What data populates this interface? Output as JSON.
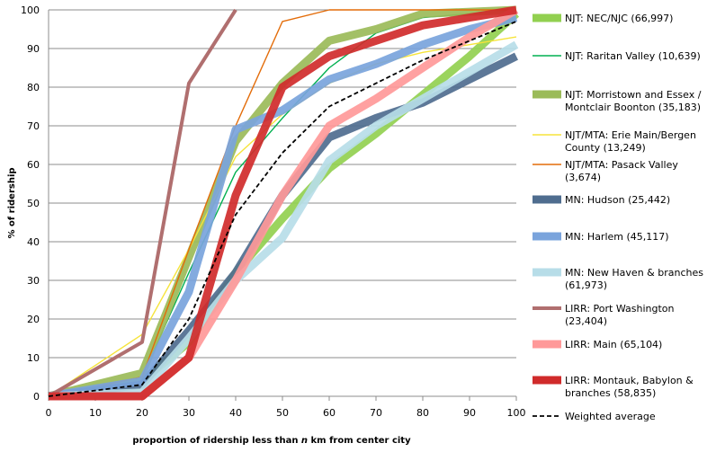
{
  "chart_data": {
    "type": "line",
    "xlabel_parts": [
      "proportion of ridership less than ",
      "n",
      " km from center city"
    ],
    "ylabel": "% of ridership",
    "x": [
      0,
      10,
      20,
      30,
      40,
      50,
      60,
      70,
      80,
      90,
      100
    ],
    "xlim": [
      0,
      100
    ],
    "ylim": [
      0,
      100
    ],
    "x_ticks": [
      "0",
      "10",
      "20",
      "30",
      "40",
      "50",
      "60",
      "70",
      "80",
      "90",
      "100"
    ],
    "y_ticks": [
      "0",
      "10",
      "20",
      "30",
      "40",
      "50",
      "60",
      "70",
      "80",
      "90",
      "100"
    ],
    "grid": "horizontal",
    "legend_position": "right",
    "series": [
      {
        "name": "NJT: NEC/NJC (66,997)",
        "color": "#92d050",
        "weight": "heavy",
        "points": [
          [
            0,
            0
          ],
          [
            20,
            4
          ],
          [
            30,
            14
          ],
          [
            40,
            32
          ],
          [
            50,
            46
          ],
          [
            60,
            59
          ],
          [
            70,
            68
          ],
          [
            80,
            78
          ],
          [
            90,
            88
          ],
          [
            100,
            99
          ]
        ]
      },
      {
        "name": "NJT: Raritan Valley (10,639)",
        "color": "#00b050",
        "weight": "thin",
        "points": [
          [
            0,
            0
          ],
          [
            20,
            5
          ],
          [
            30,
            32
          ],
          [
            40,
            58
          ],
          [
            50,
            72
          ],
          [
            60,
            85
          ],
          [
            70,
            94
          ],
          [
            80,
            98
          ],
          [
            100,
            100
          ]
        ]
      },
      {
        "name": "NJT: Morristown and Essex / Montclair Boonton (35,183)",
        "color": "#9bbb59",
        "weight": "heavy",
        "points": [
          [
            0,
            0
          ],
          [
            20,
            6
          ],
          [
            30,
            36
          ],
          [
            40,
            66
          ],
          [
            50,
            81
          ],
          [
            60,
            92
          ],
          [
            70,
            95
          ],
          [
            80,
            99
          ],
          [
            100,
            100
          ]
        ]
      },
      {
        "name": "NJT/MTA: Erie Main/Bergen County (13,249)",
        "color": "#f6e43a",
        "weight": "thin",
        "points": [
          [
            0,
            0
          ],
          [
            20,
            16
          ],
          [
            30,
            38
          ],
          [
            40,
            62
          ],
          [
            50,
            73
          ],
          [
            60,
            81
          ],
          [
            70,
            86
          ],
          [
            80,
            89
          ],
          [
            90,
            91
          ],
          [
            100,
            93
          ]
        ]
      },
      {
        "name": "NJT/MTA: Pasack Valley (3,674)",
        "color": "#e36c09",
        "weight": "thin",
        "points": [
          [
            0,
            0
          ],
          [
            20,
            5
          ],
          [
            30,
            38
          ],
          [
            40,
            70
          ],
          [
            50,
            97
          ],
          [
            60,
            100
          ],
          [
            100,
            100
          ]
        ]
      },
      {
        "name": "MN: Hudson (25,442)",
        "color": "#4f6d8f",
        "weight": "heavy",
        "points": [
          [
            0,
            0
          ],
          [
            20,
            3
          ],
          [
            30,
            17
          ],
          [
            40,
            32
          ],
          [
            50,
            52
          ],
          [
            60,
            67
          ],
          [
            70,
            72
          ],
          [
            80,
            76
          ],
          [
            90,
            82
          ],
          [
            100,
            88
          ]
        ]
      },
      {
        "name": "MN: Harlem (45,117)",
        "color": "#7aa4dc",
        "weight": "heavy",
        "points": [
          [
            0,
            0
          ],
          [
            20,
            4
          ],
          [
            30,
            27
          ],
          [
            40,
            69
          ],
          [
            50,
            74
          ],
          [
            60,
            82
          ],
          [
            70,
            86
          ],
          [
            80,
            91
          ],
          [
            90,
            95
          ],
          [
            100,
            98
          ]
        ]
      },
      {
        "name": "MN: New Haven & branches (61,973)",
        "color": "#b7dde8",
        "weight": "heavy",
        "points": [
          [
            0,
            0
          ],
          [
            20,
            1
          ],
          [
            30,
            15
          ],
          [
            40,
            30
          ],
          [
            50,
            41
          ],
          [
            60,
            61
          ],
          [
            70,
            70
          ],
          [
            80,
            77
          ],
          [
            90,
            84
          ],
          [
            100,
            91
          ]
        ]
      },
      {
        "name": "LIRR: Port Washington (23,404)",
        "color": "#b06f6f",
        "weight": "medium",
        "points": [
          [
            0,
            0
          ],
          [
            20,
            14
          ],
          [
            30,
            81
          ],
          [
            40,
            100
          ]
        ]
      },
      {
        "name": "LIRR: Main (65,104)",
        "color": "#ff9999",
        "weight": "heavy",
        "points": [
          [
            0,
            0
          ],
          [
            20,
            0
          ],
          [
            30,
            10
          ],
          [
            40,
            30
          ],
          [
            50,
            52
          ],
          [
            60,
            70
          ],
          [
            70,
            77
          ],
          [
            80,
            85
          ],
          [
            90,
            93
          ],
          [
            100,
            100
          ]
        ]
      },
      {
        "name": "LIRR: Montauk, Babylon & branches (58,835)",
        "color": "#d02b2b",
        "weight": "heavy",
        "points": [
          [
            0,
            0
          ],
          [
            20,
            0
          ],
          [
            30,
            10
          ],
          [
            40,
            52
          ],
          [
            50,
            80
          ],
          [
            60,
            88
          ],
          [
            70,
            92
          ],
          [
            80,
            96
          ],
          [
            90,
            98
          ],
          [
            100,
            100
          ]
        ]
      },
      {
        "name": "Weighted average",
        "color": "#000000",
        "weight": "dashed",
        "points": [
          [
            0,
            0
          ],
          [
            20,
            3
          ],
          [
            30,
            20
          ],
          [
            40,
            47
          ],
          [
            50,
            63
          ],
          [
            60,
            75
          ],
          [
            70,
            81
          ],
          [
            80,
            87
          ],
          [
            90,
            92
          ],
          [
            100,
            97
          ]
        ]
      }
    ]
  }
}
